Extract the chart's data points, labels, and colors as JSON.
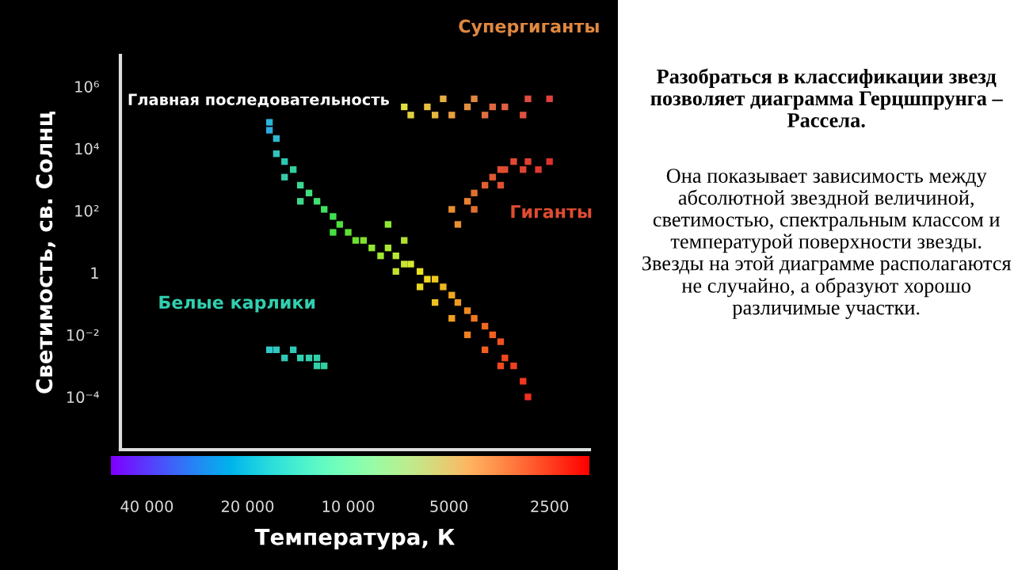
{
  "chart_data": {
    "type": "scatter",
    "xlabel": "Температура, К",
    "ylabel": "Светимость, св. Солнц",
    "log": "xy",
    "xlim": [
      48000,
      1900
    ],
    "ylim": [
      2e-06,
      10000000.0
    ],
    "xticks": [
      {
        "value": 40000,
        "label": "40 000"
      },
      {
        "value": 20000,
        "label": "20 000"
      },
      {
        "value": 10000,
        "label": "10 000"
      },
      5000,
      2500
    ],
    "yticks": [
      {
        "value": 1000000.0,
        "label": "10⁶"
      },
      {
        "value": 10000.0,
        "label": "10⁴"
      },
      {
        "value": 100,
        "label": "10²"
      },
      1,
      {
        "value": 0.01,
        "label": "10⁻²"
      },
      {
        "value": 0.0001,
        "label": "10⁻⁴"
      }
    ],
    "marker": "square",
    "grid": false,
    "legend": false,
    "series": [
      {
        "name": "Главная последовательность",
        "x": [
          17200,
          17200,
          16400,
          16400,
          15500,
          14600,
          15500,
          13900,
          13100,
          13900,
          12400,
          11800,
          11100,
          10600,
          11100,
          10000,
          9500,
          9000,
          8500,
          8000,
          7600,
          7200,
          6800,
          7200,
          6500,
          6100,
          5800,
          5500,
          6100,
          5200,
          4900,
          5500,
          4700,
          4400,
          4900,
          4200,
          3900,
          4400,
          3700,
          3500,
          3900,
          3400,
          3200,
          3500,
          3000,
          2900,
          7600,
          6800
        ],
        "values": [
          70000.0,
          39000.0,
          21000.0,
          6800.0,
          3800.0,
          2100.0,
          1200.0,
          660,
          370,
          200,
          200,
          110,
          65,
          36,
          20,
          20,
          11,
          11,
          6.3,
          3.5,
          6.3,
          3.5,
          1.9,
          1.1,
          1.9,
          1.1,
          0.62,
          0.62,
          0.35,
          0.35,
          0.19,
          0.11,
          0.11,
          0.06,
          0.034,
          0.034,
          0.019,
          0.01,
          0.01,
          0.006,
          0.0033,
          0.0018,
          0.001,
          0.001,
          0.00032,
          0.0001,
          36,
          11
        ],
        "colors": [
          "#2bb5d8",
          "#30a8e0",
          "#2fb8d0",
          "#33c4c0",
          "#2cc8b0",
          "#30d0a0",
          "#38c8a8",
          "#3ad890",
          "#40e080",
          "#3cd888",
          "#40e070",
          "#40e060",
          "#40e050",
          "#50e040",
          "#48e040",
          "#60e030",
          "#70e030",
          "#80e030",
          "#90e830",
          "#a0e830",
          "#a8e830",
          "#b8e830",
          "#c8e830",
          "#c0e030",
          "#d8e830",
          "#e8e020",
          "#f0d820",
          "#f0c820",
          "#e8d820",
          "#f0b820",
          "#f0a820",
          "#f0c020",
          "#f09820",
          "#f08820",
          "#f0a020",
          "#f07820",
          "#f06820",
          "#f08020",
          "#f06020",
          "#f05020",
          "#f06020",
          "#f04820",
          "#f04020",
          "#f04820",
          "#f03820",
          "#f03020",
          "#90e830",
          "#b0e030"
        ]
      },
      {
        "name": "Белые карлики",
        "x": [
          17200,
          16400,
          15500,
          14600,
          13900,
          13100,
          12400,
          11800,
          12400
        ],
        "values": [
          0.0033,
          0.0033,
          0.0018,
          0.0033,
          0.0018,
          0.0018,
          0.001,
          0.001,
          0.0018
        ],
        "colors": [
          "#30c8c8",
          "#30c8c0",
          "#30c8b8",
          "#30c8b8",
          "#30d0b0",
          "#30d0b0",
          "#30d0a8",
          "#30d0a0",
          "#30d0a8"
        ]
      },
      {
        "name": "Гиганты",
        "x": [
          4700,
          4900,
          4400,
          4200,
          3900,
          3700,
          3500,
          3400,
          3200,
          3000,
          2900,
          2700,
          2500,
          3500,
          4200
        ],
        "values": [
          36,
          110,
          200,
          370,
          660,
          1200,
          2100,
          2100,
          3800,
          2100,
          3800,
          2100,
          3800,
          660,
          110
        ],
        "colors": [
          "#e89030",
          "#e89030",
          "#e88030",
          "#e07030",
          "#e06030",
          "#e05830",
          "#e05030",
          "#e04c30",
          "#e04830",
          "#e04430",
          "#e04030",
          "#e03830",
          "#e03030",
          "#e05030",
          "#e07030"
        ]
      },
      {
        "name": "Супергиганты",
        "x": [
          6800,
          6500,
          5800,
          5500,
          5200,
          4900,
          4400,
          4200,
          3900,
          3700,
          3400,
          3000,
          2900,
          2500
        ],
        "values": [
          220000.0,
          120000.0,
          220000.0,
          120000.0,
          400000.0,
          120000.0,
          220000.0,
          400000.0,
          120000.0,
          220000.0,
          220000.0,
          120000.0,
          400000.0,
          400000.0
        ],
        "colors": [
          "#e0e040",
          "#e0d040",
          "#e8c040",
          "#e8b840",
          "#e8b040",
          "#e8a040",
          "#e09040",
          "#e08840",
          "#e07040",
          "#e06840",
          "#e06040",
          "#e05040",
          "#e04c40",
          "#e04040"
        ]
      }
    ],
    "annotations": [
      "Разобраться в классификации звезд позволяет диаграмма Герцшпрунга – Рассела.",
      "Она показывает зависимость между абсолютной звездной величиной, светимостью, спектральным классом и температурой поверхности звезды. Звезды на этой диаграмме располагаются не случайно, а образуют хорошо различимые участки."
    ]
  }
}
